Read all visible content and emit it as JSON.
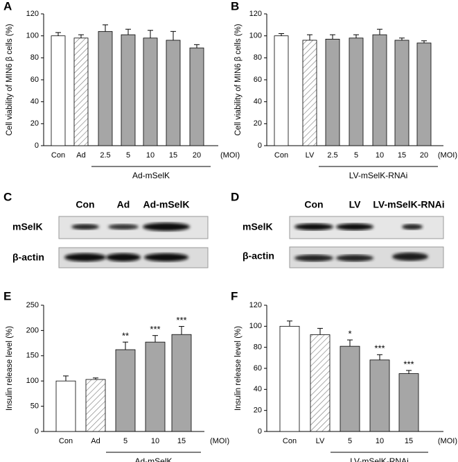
{
  "panel_labels": [
    "A",
    "B",
    "C",
    "D",
    "E",
    "F"
  ],
  "chart_data": [
    {
      "type": "bar",
      "y_label": "Cell viability of MIN6 β cells (%)",
      "x_unit": "(MOI)",
      "categories": [
        "Con",
        "Ad",
        "2.5",
        "5",
        "10",
        "15",
        "20"
      ],
      "values": [
        100,
        98,
        104,
        101,
        98,
        96,
        89
      ],
      "errors": [
        3,
        3,
        6,
        5,
        7,
        8,
        3
      ],
      "colors": [
        "#ffffff",
        "#ffffff",
        "#a6a6a6",
        "#a6a6a6",
        "#a6a6a6",
        "#a6a6a6",
        "#a6a6a6"
      ],
      "hatched_index": 1,
      "group": {
        "label": "Ad-mSelK",
        "from": 2,
        "to": 6
      },
      "ylim": [
        0,
        120
      ],
      "yticks": [
        0,
        20,
        40,
        60,
        80,
        100,
        120
      ]
    },
    {
      "type": "bar",
      "y_label": "Cell viability of MIN6 β cells (%)",
      "x_unit": "(MOI)",
      "categories": [
        "Con",
        "LV",
        "2.5",
        "5",
        "10",
        "15",
        "20"
      ],
      "values": [
        100,
        96,
        97,
        98,
        101,
        96,
        93.5
      ],
      "errors": [
        2,
        5,
        4,
        3,
        5,
        2,
        2
      ],
      "colors": [
        "#ffffff",
        "#ffffff",
        "#a6a6a6",
        "#a6a6a6",
        "#a6a6a6",
        "#a6a6a6",
        "#a6a6a6"
      ],
      "hatched_index": 1,
      "group": {
        "label": "LV-mSelK-RNAi",
        "from": 2,
        "to": 6
      },
      "ylim": [
        0,
        120
      ],
      "yticks": [
        0,
        20,
        40,
        60,
        80,
        100,
        120
      ]
    },
    {
      "type": "bar",
      "y_label": "Insulin release level (%)",
      "x_unit": "(MOI)",
      "categories": [
        "Con",
        "Ad",
        "5",
        "10",
        "15"
      ],
      "values": [
        100,
        103,
        162,
        177,
        192
      ],
      "errors": [
        10,
        3,
        15,
        13,
        16
      ],
      "significance": [
        null,
        null,
        "**",
        "***",
        "***"
      ],
      "colors": [
        "#ffffff",
        "#ffffff",
        "#a6a6a6",
        "#a6a6a6",
        "#a6a6a6"
      ],
      "hatched_index": 1,
      "group": {
        "label": "Ad-mSelK",
        "from": 2,
        "to": 4
      },
      "ylim": [
        0,
        250
      ],
      "yticks": [
        0,
        50,
        100,
        150,
        200,
        250
      ]
    },
    {
      "type": "bar",
      "y_label": "Insulin release level (%)",
      "x_unit": "(MOI)",
      "categories": [
        "Con",
        "LV",
        "5",
        "10",
        "15"
      ],
      "values": [
        100,
        92,
        81,
        68,
        55
      ],
      "errors": [
        5,
        6,
        6,
        5,
        3
      ],
      "significance": [
        null,
        null,
        "*",
        "***",
        "***"
      ],
      "colors": [
        "#ffffff",
        "#ffffff",
        "#a6a6a6",
        "#a6a6a6",
        "#a6a6a6"
      ],
      "hatched_index": 1,
      "group": {
        "label": "LV-mSelK-RNAi",
        "from": 2,
        "to": 4
      },
      "ylim": [
        0,
        120
      ],
      "yticks": [
        0,
        20,
        40,
        60,
        80,
        100,
        120
      ]
    }
  ],
  "blots": [
    {
      "headers": [
        "Con",
        "Ad",
        "Ad-mSelK"
      ],
      "rows": [
        "mSelK",
        "β-actin"
      ]
    },
    {
      "headers": [
        "Con",
        "LV",
        "LV-mSelK-RNAi"
      ],
      "rows": [
        "mSelK",
        "β-actin"
      ]
    }
  ]
}
